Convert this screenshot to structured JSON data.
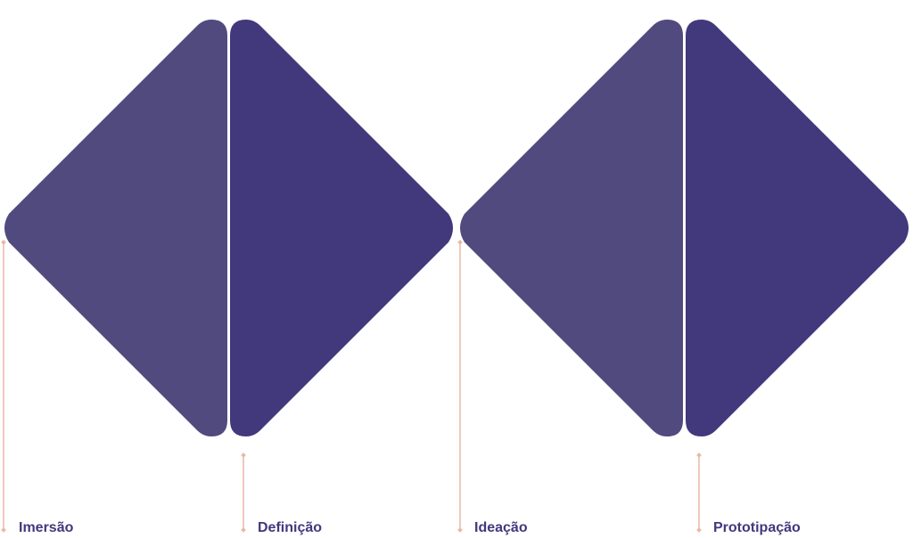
{
  "colors": {
    "light_half": "#514a7e",
    "dark_half": "#42387c",
    "connector": "#e8b9a4",
    "label_text": "#42387c"
  },
  "stages": [
    {
      "label": "Imersão",
      "shape": "left-half",
      "diamond": 1
    },
    {
      "label": "Definição",
      "shape": "right-half",
      "diamond": 1
    },
    {
      "label": "Ideação",
      "shape": "left-half",
      "diamond": 2
    },
    {
      "label": "Prototipação",
      "shape": "right-half",
      "diamond": 2
    }
  ]
}
